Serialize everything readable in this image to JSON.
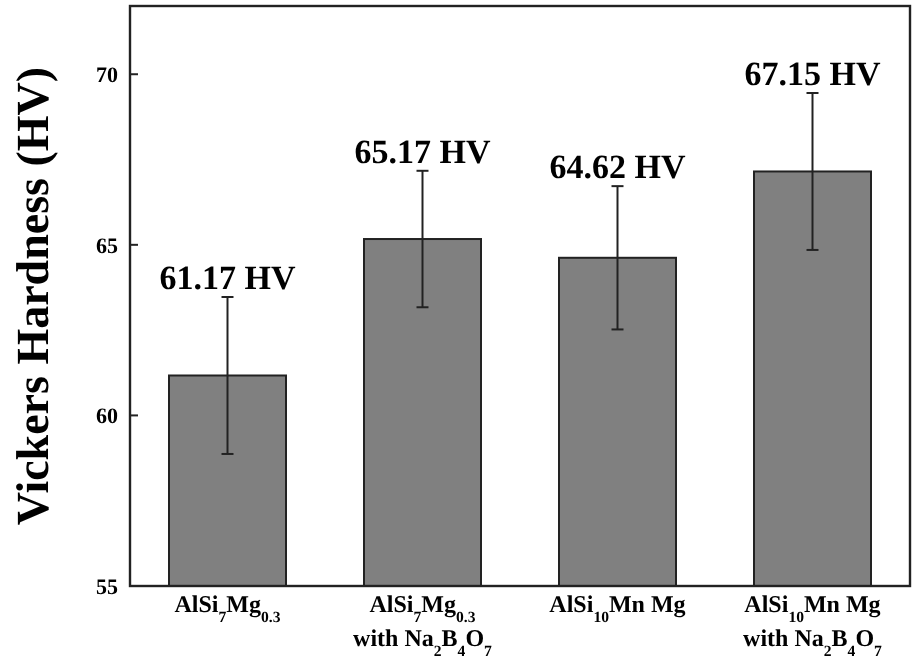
{
  "chart_data": {
    "type": "bar",
    "ylabel": "Vickers Hardness (HV)",
    "categories": [
      "AlSi$_{7}$Mg$_{0.3}$",
      "AlSi$_{7}$Mg$_{0.3}$\nwith Na$_{2}$B$_{4}$O$_{7}$",
      "AlSi$_{10}$Mn Mg",
      "AlSi$_{10}$Mn Mg\nwith Na$_{2}$B$_{4}$O$_{7}$"
    ],
    "values": [
      61.17,
      65.17,
      64.62,
      67.15
    ],
    "errors": [
      2.3,
      2.0,
      2.1,
      2.3
    ],
    "value_labels": [
      "61.17 HV",
      "65.17 HV",
      "64.62 HV",
      "67.15 HV"
    ],
    "color": "#808080",
    "ylim": [
      55,
      72
    ],
    "yticks": [
      55,
      60,
      65,
      70
    ],
    "grid": false
  }
}
